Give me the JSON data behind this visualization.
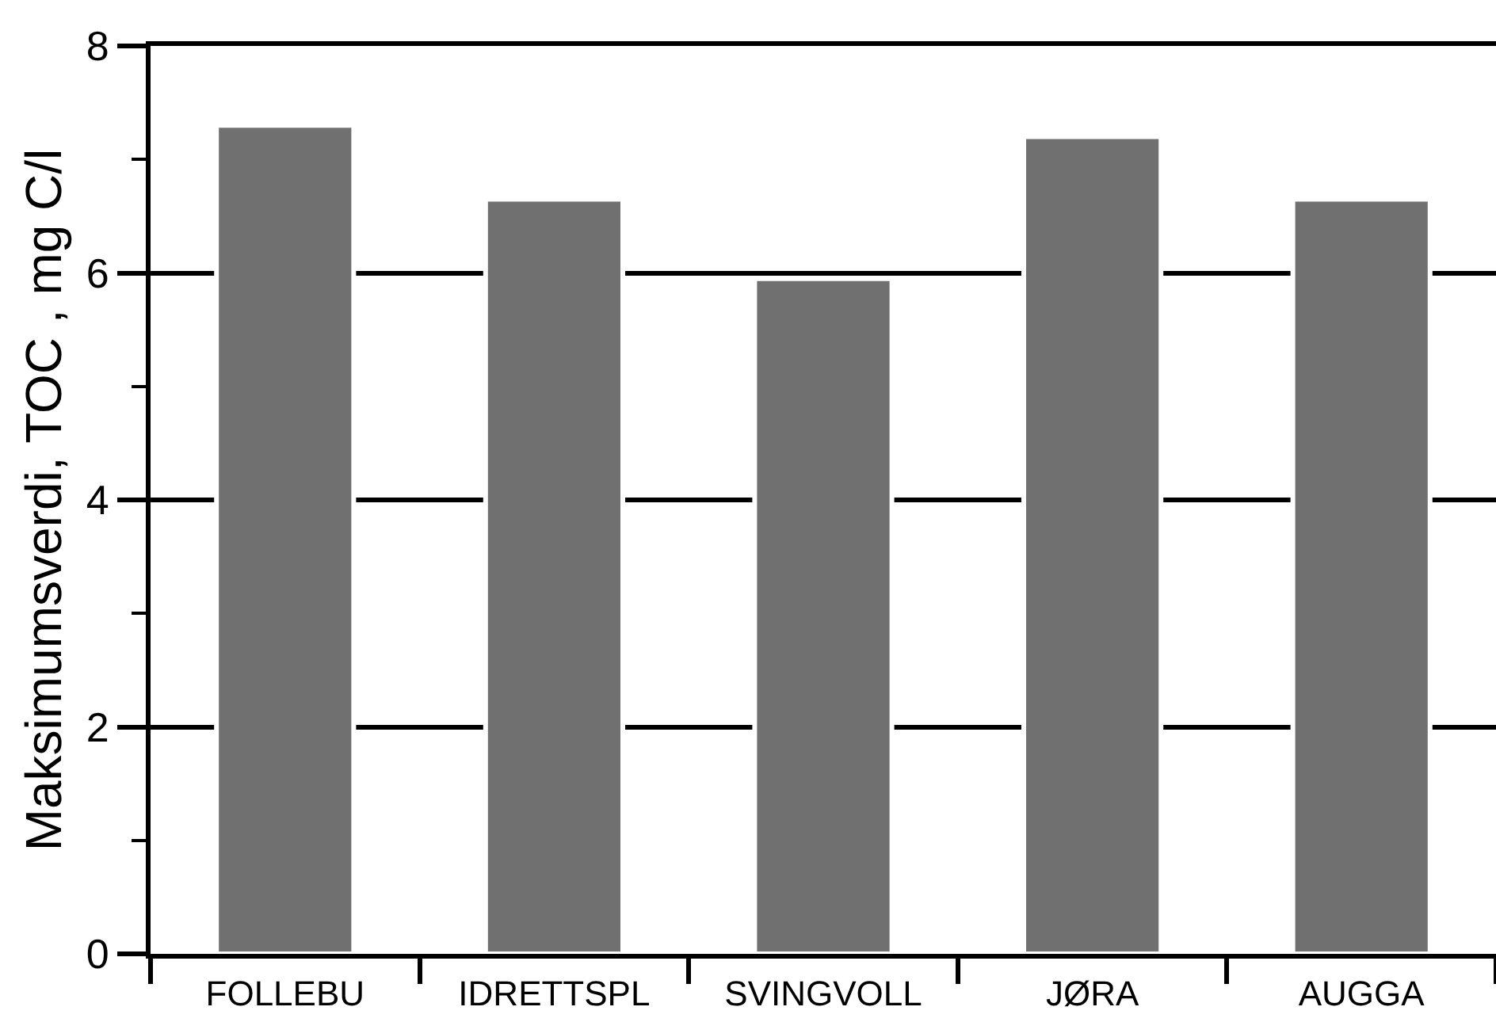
{
  "chart_data": {
    "type": "bar",
    "ylabel": "Maksimumsverdi, TOC , mg C/l",
    "categories": [
      "FOLLEBU",
      "IDRETTSPL",
      "SVINGVOLL",
      "JØRA",
      "AUGGA"
    ],
    "values": [
      7.3,
      6.65,
      5.95,
      7.2,
      6.65
    ],
    "color": "#707070",
    "ylim": [
      0,
      8
    ],
    "yticks": [
      0,
      {
        "value": 1,
        "label": null
      },
      2,
      {
        "value": 3,
        "label": null
      },
      4,
      {
        "value": 5,
        "label": null
      },
      6,
      {
        "value": 7,
        "label": null
      },
      8
    ],
    "grid": "y"
  }
}
